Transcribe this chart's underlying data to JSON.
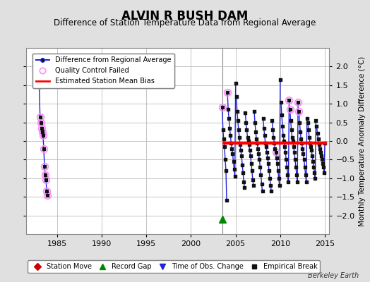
{
  "title": "ALVIN R BUSH DAM",
  "subtitle": "Difference of Station Temperature Data from Regional Average",
  "ylabel": "Monthly Temperature Anomaly Difference (°C)",
  "xlabel_credit": "Berkeley Earth",
  "xlim": [
    1981.5,
    2015.5
  ],
  "ylim": [
    -2.5,
    2.5
  ],
  "yticks": [
    -2,
    -1.5,
    -1,
    -0.5,
    0,
    0.5,
    1,
    1.5,
    2
  ],
  "xticks": [
    1985,
    1990,
    1995,
    2000,
    2005,
    2010,
    2015
  ],
  "estimated_bias": -0.05,
  "bias_start": 2003.5,
  "bias_end": 2015.2,
  "vertical_line_x": 2003.5,
  "green_triangle_x": 2003.5,
  "green_triangle_y": -2.1,
  "background_color": "#e0e0e0",
  "plot_bg_color": "#ffffff",
  "grid_color": "#bbbbbb",
  "line_color": "#2222dd",
  "bias_line_color": "#ff0000",
  "qc_circle_color": "#ff88ff",
  "dot_color": "#111111",
  "title_fontsize": 12,
  "subtitle_fontsize": 8.5,
  "tick_fontsize": 8,
  "ylabel_fontsize": 7.5,
  "early_x": [
    1983.0,
    1983.083,
    1983.167,
    1983.25,
    1983.333,
    1983.417,
    1983.5,
    1983.583,
    1983.667,
    1983.75,
    1983.833,
    1983.917
  ],
  "early_y": [
    1.5,
    0.65,
    0.5,
    0.35,
    0.25,
    0.15,
    -0.2,
    -0.68,
    -0.9,
    -1.05,
    -1.35,
    -1.45
  ],
  "early_qc": [
    true,
    true,
    true,
    true,
    true,
    true,
    true,
    true,
    true,
    true,
    true,
    true
  ],
  "segments": [
    {
      "x": [
        2003.5,
        2003.583,
        2003.667,
        2003.75,
        2003.833,
        2003.917,
        2004.0
      ],
      "y": [
        0.9,
        0.3,
        0.05,
        -0.15,
        -0.5,
        -0.8,
        -1.6
      ],
      "qc": [
        true,
        false,
        false,
        false,
        false,
        false,
        false
      ]
    },
    {
      "x": [
        2004.083,
        2004.167,
        2004.25,
        2004.333,
        2004.417,
        2004.5,
        2004.583,
        2004.667,
        2004.75,
        2004.833,
        2004.917,
        2005.0
      ],
      "y": [
        1.3,
        0.85,
        0.6,
        0.35,
        0.15,
        -0.05,
        -0.2,
        -0.35,
        -0.55,
        -0.75,
        -0.95,
        1.55
      ],
      "qc": [
        true,
        false,
        false,
        false,
        false,
        false,
        false,
        false,
        false,
        false,
        false,
        false
      ]
    },
    {
      "x": [
        2005.083,
        2005.167,
        2005.25,
        2005.333,
        2005.417,
        2005.5,
        2005.583,
        2005.667,
        2005.75,
        2005.833,
        2005.917,
        2006.0
      ],
      "y": [
        1.2,
        0.8,
        0.55,
        0.3,
        0.1,
        -0.1,
        -0.25,
        -0.4,
        -0.65,
        -0.85,
        -1.1,
        -1.25
      ],
      "qc": [
        false,
        false,
        false,
        false,
        false,
        false,
        false,
        false,
        false,
        false,
        false,
        false
      ]
    },
    {
      "x": [
        2006.083,
        2006.167,
        2006.25,
        2006.333,
        2006.417,
        2006.5,
        2006.583,
        2006.667,
        2006.75,
        2006.833,
        2006.917,
        2007.0
      ],
      "y": [
        0.75,
        0.5,
        0.3,
        0.1,
        0.0,
        -0.1,
        -0.25,
        -0.4,
        -0.6,
        -0.8,
        -1.05,
        -1.2
      ],
      "qc": [
        false,
        false,
        false,
        false,
        false,
        false,
        false,
        false,
        false,
        false,
        false,
        false
      ]
    },
    {
      "x": [
        2007.083,
        2007.167,
        2007.25,
        2007.333,
        2007.417,
        2007.5,
        2007.583,
        2007.667,
        2007.75,
        2007.833,
        2007.917,
        2008.0
      ],
      "y": [
        0.8,
        0.5,
        0.25,
        0.05,
        -0.05,
        -0.2,
        -0.35,
        -0.5,
        -0.7,
        -0.9,
        -1.15,
        -1.35
      ],
      "qc": [
        false,
        false,
        false,
        false,
        false,
        false,
        false,
        false,
        false,
        false,
        false,
        false
      ]
    },
    {
      "x": [
        2008.083,
        2008.167,
        2008.25,
        2008.333,
        2008.417,
        2008.5,
        2008.583,
        2008.667,
        2008.75,
        2008.833,
        2008.917,
        2009.0
      ],
      "y": [
        0.6,
        0.35,
        0.15,
        -0.05,
        -0.15,
        -0.3,
        -0.45,
        -0.6,
        -0.8,
        -1.0,
        -1.2,
        -1.35
      ],
      "qc": [
        false,
        false,
        false,
        false,
        false,
        false,
        false,
        false,
        false,
        false,
        false,
        false
      ]
    },
    {
      "x": [
        2009.083,
        2009.167,
        2009.25,
        2009.333,
        2009.417,
        2009.5,
        2009.583,
        2009.667,
        2009.75,
        2009.833,
        2009.917,
        2010.0
      ],
      "y": [
        0.55,
        0.3,
        0.1,
        -0.05,
        -0.2,
        -0.3,
        -0.45,
        -0.6,
        -0.8,
        -1.0,
        -1.2,
        1.65
      ],
      "qc": [
        false,
        false,
        false,
        false,
        false,
        true,
        false,
        false,
        false,
        false,
        false,
        false
      ]
    },
    {
      "x": [
        2010.083,
        2010.167,
        2010.25,
        2010.333,
        2010.417,
        2010.5,
        2010.583,
        2010.667,
        2010.75,
        2010.833,
        2010.917,
        2011.0
      ],
      "y": [
        1.05,
        0.7,
        0.4,
        0.15,
        0.0,
        -0.15,
        -0.3,
        -0.5,
        -0.7,
        -0.9,
        -1.1,
        1.1
      ],
      "qc": [
        false,
        false,
        false,
        false,
        false,
        false,
        false,
        false,
        false,
        false,
        false,
        true
      ]
    },
    {
      "x": [
        2011.083,
        2011.167,
        2011.25,
        2011.333,
        2011.417,
        2011.5,
        2011.583,
        2011.667,
        2011.75,
        2011.833,
        2011.917,
        2012.0
      ],
      "y": [
        0.85,
        0.55,
        0.3,
        0.1,
        0.0,
        -0.15,
        -0.3,
        -0.5,
        -0.7,
        -0.9,
        -1.1,
        1.05
      ],
      "qc": [
        true,
        false,
        false,
        false,
        false,
        false,
        false,
        false,
        false,
        false,
        false,
        true
      ]
    },
    {
      "x": [
        2012.083,
        2012.167,
        2012.25,
        2012.333,
        2012.417,
        2012.5,
        2012.583,
        2012.667,
        2012.75,
        2012.833,
        2012.917,
        2013.0
      ],
      "y": [
        0.8,
        0.5,
        0.25,
        0.05,
        -0.05,
        -0.2,
        -0.35,
        -0.5,
        -0.7,
        -0.9,
        -1.1,
        0.6
      ],
      "qc": [
        true,
        false,
        false,
        false,
        false,
        false,
        false,
        false,
        false,
        false,
        false,
        false
      ]
    },
    {
      "x": [
        2013.083,
        2013.167,
        2013.25,
        2013.333,
        2013.417,
        2013.5,
        2013.583,
        2013.667,
        2013.75,
        2013.833,
        2013.917,
        2014.0
      ],
      "y": [
        0.5,
        0.3,
        0.1,
        -0.05,
        -0.15,
        -0.25,
        -0.4,
        -0.55,
        -0.7,
        -0.85,
        -1.0,
        0.55
      ],
      "qc": [
        false,
        false,
        false,
        false,
        false,
        false,
        false,
        false,
        false,
        false,
        false,
        false
      ]
    },
    {
      "x": [
        2014.083,
        2014.167,
        2014.25,
        2014.333,
        2014.417,
        2014.5,
        2014.583,
        2014.667,
        2014.75,
        2014.833,
        2014.917,
        2015.0
      ],
      "y": [
        0.4,
        0.2,
        0.05,
        -0.1,
        -0.2,
        -0.3,
        -0.4,
        -0.5,
        -0.6,
        -0.7,
        -0.85,
        -0.05
      ],
      "qc": [
        false,
        false,
        false,
        false,
        false,
        false,
        false,
        false,
        false,
        false,
        false,
        false
      ]
    }
  ]
}
